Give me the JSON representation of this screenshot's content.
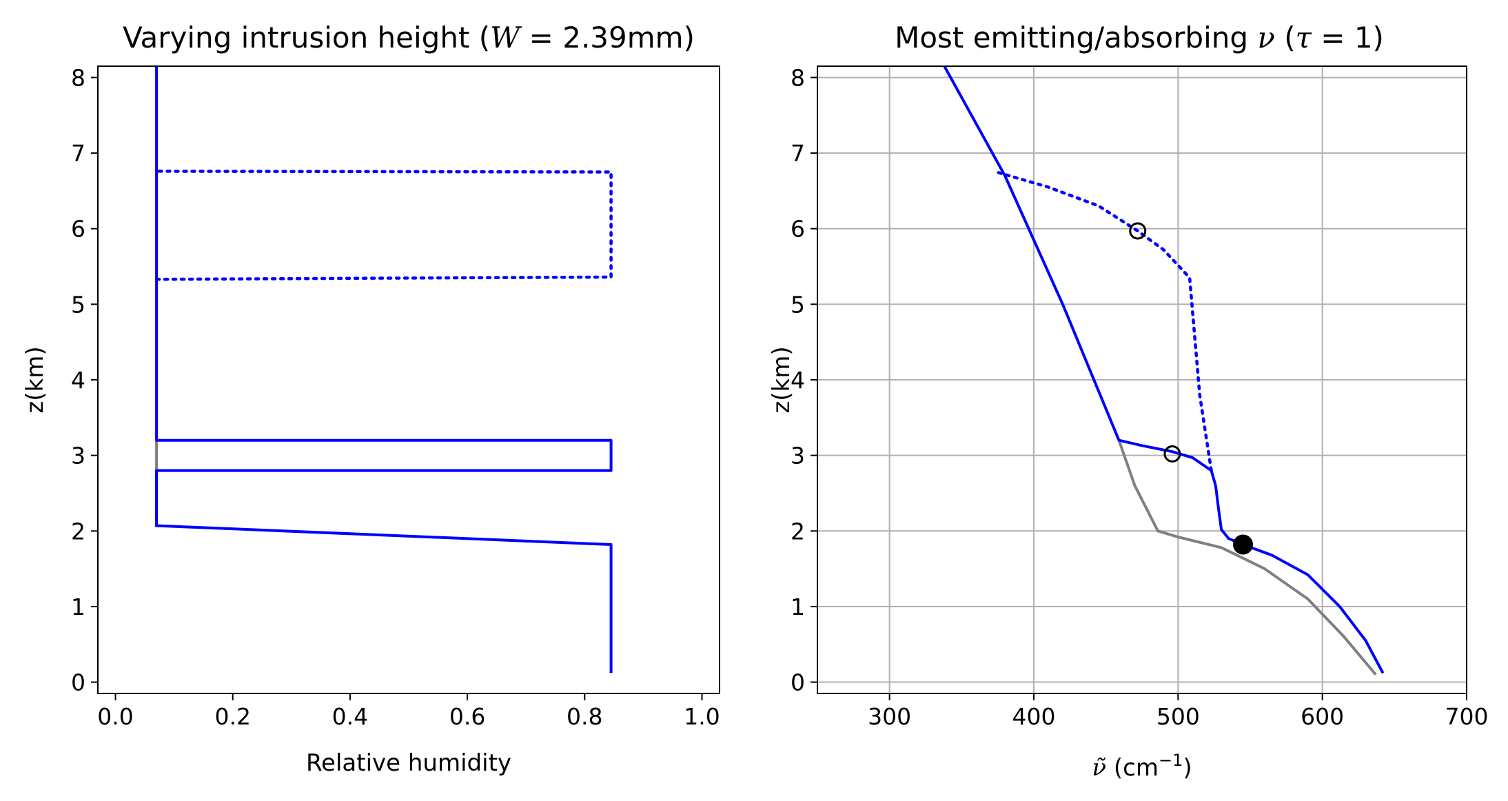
{
  "chart_data": [
    {
      "type": "line",
      "title": "Varying intrusion height (W = 2.39mm)",
      "title_parts": {
        "pre": "Varying intrusion height (",
        "math_var": "W",
        "math_rest": " = 2.39mm)"
      },
      "xlabel": "Relative humidity",
      "ylabel": "z(km)",
      "xlim": [
        -0.03,
        1.03
      ],
      "ylim": [
        -0.15,
        8.15
      ],
      "xticks": [
        0.0,
        0.2,
        0.4,
        0.6,
        0.8,
        1.0
      ],
      "xtick_labels": [
        "0.0",
        "0.2",
        "0.4",
        "0.6",
        "0.8",
        "1.0"
      ],
      "yticks": [
        0,
        1,
        2,
        3,
        4,
        5,
        6,
        7,
        8
      ],
      "ytick_labels": [
        "0",
        "1",
        "2",
        "3",
        "4",
        "5",
        "6",
        "7",
        "8"
      ],
      "grid": false,
      "colors": {
        "intrusion": "#0000ff",
        "reference": "#808080"
      },
      "series": [
        {
          "style": "solid",
          "color": "#808080",
          "points": [
            [
              0.07,
              2.05
            ],
            [
              0.07,
              3.2
            ]
          ]
        },
        {
          "style": "solid",
          "color": "#0000ff",
          "points": [
            [
              0.845,
              0.12
            ],
            [
              0.845,
              1.82
            ],
            [
              0.07,
              2.07
            ],
            [
              0.07,
              2.8
            ],
            [
              0.845,
              2.8
            ],
            [
              0.845,
              3.2
            ],
            [
              0.07,
              3.2
            ],
            [
              0.07,
              8.15
            ]
          ]
        },
        {
          "style": "dotted",
          "color": "#0000ff",
          "points": [
            [
              0.07,
              5.33
            ],
            [
              0.845,
              5.36
            ],
            [
              0.845,
              6.75
            ],
            [
              0.07,
              6.76
            ]
          ]
        }
      ]
    },
    {
      "type": "line",
      "title": "Most emitting/absorbing ν (τ = 1)",
      "title_parts": {
        "pre": "Most emitting/absorbing ",
        "math_nu": "ν",
        "mid": " (",
        "math_tau": "τ",
        "math_rest": " = 1)"
      },
      "xlabel": "ν̃ (cm⁻¹)",
      "xlabel_parts": {
        "symbol": "ν̃",
        "unit_pre": " (cm",
        "unit_sup": "−1",
        "unit_post": ")"
      },
      "ylabel": "z(km)",
      "xlim": [
        250,
        700
      ],
      "ylim": [
        -0.15,
        8.15
      ],
      "xticks": [
        300,
        400,
        500,
        600,
        700
      ],
      "xtick_labels": [
        "300",
        "400",
        "500",
        "600",
        "700"
      ],
      "yticks": [
        0,
        1,
        2,
        3,
        4,
        5,
        6,
        7,
        8
      ],
      "ytick_labels": [
        "0",
        "1",
        "2",
        "3",
        "4",
        "5",
        "6",
        "7",
        "8"
      ],
      "grid": true,
      "series": [
        {
          "style": "solid",
          "color": "#808080",
          "points": [
            [
              637,
              0.1
            ],
            [
              615,
              0.6
            ],
            [
              590,
              1.1
            ],
            [
              560,
              1.5
            ],
            [
              530,
              1.78
            ],
            [
              500,
              1.92
            ],
            [
              486,
              2.0
            ],
            [
              470,
              2.6
            ],
            [
              459,
              3.2
            ]
          ]
        },
        {
          "style": "solid",
          "color": "#0000ff",
          "points": [
            [
              642,
              0.12
            ],
            [
              630,
              0.55
            ],
            [
              612,
              1.0
            ],
            [
              590,
              1.42
            ],
            [
              565,
              1.68
            ],
            [
              545,
              1.82
            ],
            [
              535,
              1.9
            ],
            [
              530,
              2.02
            ],
            [
              528,
              2.3
            ],
            [
              526,
              2.6
            ],
            [
              523,
              2.8
            ],
            [
              510,
              2.97
            ],
            [
              496,
              3.05
            ],
            [
              475,
              3.13
            ],
            [
              459,
              3.2
            ],
            [
              420,
              5.0
            ],
            [
              380,
              6.7
            ],
            [
              338,
              8.15
            ]
          ]
        },
        {
          "style": "dotted",
          "color": "#0000ff",
          "points": [
            [
              523,
              2.8
            ],
            [
              515,
              3.8
            ],
            [
              508,
              5.35
            ],
            [
              490,
              5.72
            ],
            [
              472,
              5.97
            ],
            [
              445,
              6.3
            ],
            [
              410,
              6.55
            ],
            [
              374,
              6.75
            ]
          ]
        }
      ],
      "markers": [
        {
          "x": 472,
          "y": 5.97,
          "fill": "none"
        },
        {
          "x": 496,
          "y": 3.02,
          "fill": "none"
        },
        {
          "x": 545,
          "y": 1.82,
          "fill": "#000000"
        }
      ]
    }
  ]
}
